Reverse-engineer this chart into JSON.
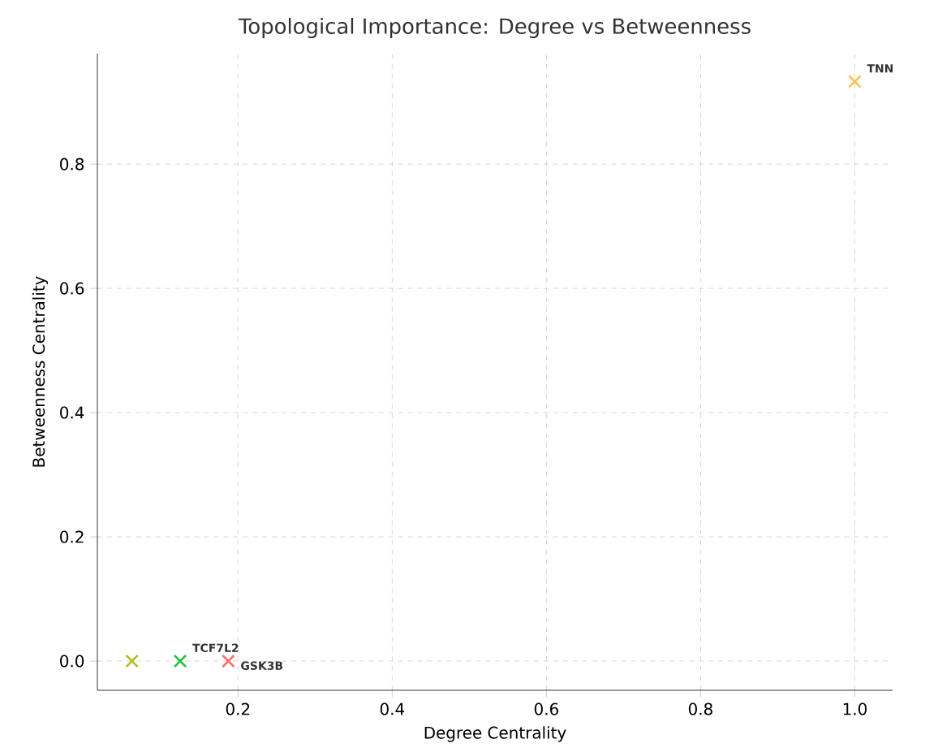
{
  "chart_data": {
    "type": "scatter",
    "title": "Topological Importance: Degree vs Betweenness",
    "xlabel": "Degree Centrality",
    "ylabel": "Betweenness Centrality",
    "xlim": [
      0.0176,
      1.049
    ],
    "ylim": [
      -0.047,
      0.978
    ],
    "xticks": [
      0.2,
      0.4,
      0.6,
      0.8,
      {
        "value": 1,
        "label": "1.0"
      }
    ],
    "yticks": [
      {
        "value": 0,
        "label": "0.0"
      },
      0.2,
      0.4,
      0.6,
      0.8
    ],
    "grid": true,
    "marker": "cross",
    "series": [
      {
        "color": "#b5bd22",
        "x": [
          0.0625
        ],
        "values": [
          0.0
        ]
      },
      {
        "color": "#22c03c",
        "x": [
          0.125
        ],
        "values": [
          0.0
        ]
      },
      {
        "color": "#ff6b6b",
        "x": [
          0.1875
        ],
        "values": [
          0.0
        ]
      },
      {
        "color": "#ffc04d",
        "x": [
          1.0
        ],
        "values": [
          0.933
        ]
      }
    ],
    "annotations": [
      {
        "text": "TCF7L2",
        "x": 0.125,
        "y": 0.0
      },
      {
        "text": "GSK3B",
        "x": 0.1875,
        "y": 0.0
      },
      {
        "text": "TNN",
        "x": 1.0,
        "y": 0.933
      }
    ]
  }
}
